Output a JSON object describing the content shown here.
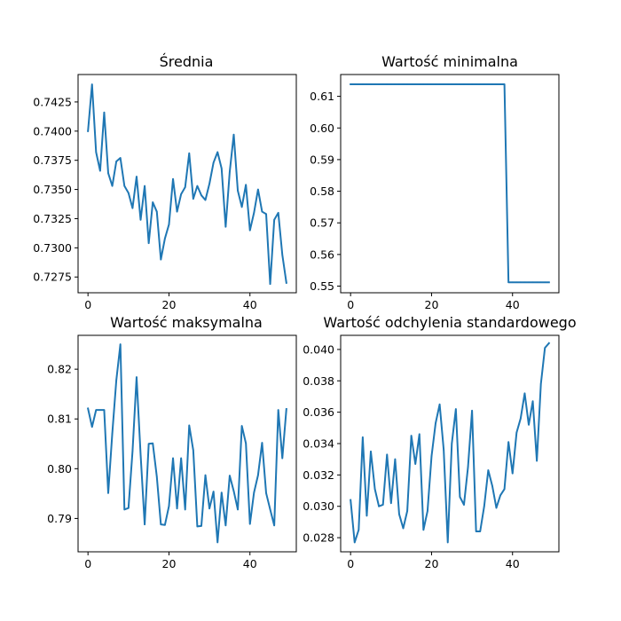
{
  "colors": {
    "series": "#1f77b4",
    "axes": "#000000",
    "background": "#ffffff"
  },
  "chart_data": [
    {
      "type": "line",
      "title": "Średnia",
      "xlabel": "",
      "ylabel": "",
      "xlim": [
        -2.45,
        51.45
      ],
      "ylim": [
        0.72615,
        0.74485
      ],
      "xticks": [
        0,
        20,
        40
      ],
      "xtick_labels": [
        "0",
        "20",
        "40"
      ],
      "yticks": [
        0.7275,
        0.73,
        0.7325,
        0.735,
        0.7375,
        0.74,
        0.7425
      ],
      "ytick_labels": [
        "0.7275",
        "0.7300",
        "0.7325",
        "0.7350",
        "0.7375",
        "0.7400",
        "0.7425"
      ],
      "grid": false,
      "x": [
        0,
        1,
        2,
        3,
        4,
        5,
        6,
        7,
        8,
        9,
        10,
        11,
        12,
        13,
        14,
        15,
        16,
        17,
        18,
        19,
        20,
        21,
        22,
        23,
        24,
        25,
        26,
        27,
        28,
        29,
        30,
        31,
        32,
        33,
        34,
        35,
        36,
        37,
        38,
        39,
        40,
        41,
        42,
        43,
        44,
        45,
        46,
        47,
        48,
        49
      ],
      "values": [
        0.74,
        0.744,
        0.7382,
        0.7366,
        0.7416,
        0.7364,
        0.7353,
        0.7374,
        0.7377,
        0.7353,
        0.7347,
        0.7334,
        0.7361,
        0.7324,
        0.7353,
        0.7304,
        0.7339,
        0.7331,
        0.729,
        0.7308,
        0.732,
        0.7359,
        0.7331,
        0.7346,
        0.7352,
        0.7381,
        0.7342,
        0.7353,
        0.7345,
        0.7341,
        0.7355,
        0.7373,
        0.7382,
        0.7368,
        0.7318,
        0.7365,
        0.7397,
        0.7349,
        0.7335,
        0.7354,
        0.7315,
        0.733,
        0.735,
        0.7331,
        0.7329,
        0.7269,
        0.7324,
        0.733,
        0.7294,
        0.727
      ]
    },
    {
      "type": "line",
      "title": "Wartość minimalna",
      "xlabel": "",
      "ylabel": "",
      "xlim": [
        -2.45,
        51.45
      ],
      "ylim": [
        0.5479,
        0.6169
      ],
      "xticks": [
        0,
        20,
        40
      ],
      "xtick_labels": [
        "0",
        "20",
        "40"
      ],
      "yticks": [
        0.55,
        0.56,
        0.57,
        0.58,
        0.59,
        0.6,
        0.61
      ],
      "ytick_labels": [
        "0.55",
        "0.56",
        "0.57",
        "0.58",
        "0.59",
        "0.60",
        "0.61"
      ],
      "grid": false,
      "x": [
        0,
        1,
        2,
        3,
        4,
        5,
        6,
        7,
        8,
        9,
        10,
        11,
        12,
        13,
        14,
        15,
        16,
        17,
        18,
        19,
        20,
        21,
        22,
        23,
        24,
        25,
        26,
        27,
        28,
        29,
        30,
        31,
        32,
        33,
        34,
        35,
        36,
        37,
        38,
        39,
        40,
        41,
        42,
        43,
        44,
        45,
        46,
        47,
        48,
        49
      ],
      "values": [
        0.6138,
        0.6138,
        0.6138,
        0.6138,
        0.6138,
        0.6138,
        0.6138,
        0.6138,
        0.6138,
        0.6138,
        0.6138,
        0.6138,
        0.6138,
        0.6138,
        0.6138,
        0.6138,
        0.6138,
        0.6138,
        0.6138,
        0.6138,
        0.6138,
        0.6138,
        0.6138,
        0.6138,
        0.6138,
        0.6138,
        0.6138,
        0.6138,
        0.6138,
        0.6138,
        0.6138,
        0.6138,
        0.6138,
        0.6138,
        0.6138,
        0.6138,
        0.6138,
        0.6138,
        0.6138,
        0.5512,
        0.5512,
        0.5512,
        0.5512,
        0.5512,
        0.5512,
        0.5512,
        0.5512,
        0.5512,
        0.5512,
        0.5512
      ]
    },
    {
      "type": "line",
      "title": "Wartość maksymalna",
      "xlabel": "",
      "ylabel": "",
      "xlim": [
        -2.45,
        51.45
      ],
      "ylim": [
        0.7833,
        0.8268
      ],
      "xticks": [
        0,
        20,
        40
      ],
      "xtick_labels": [
        "0",
        "20",
        "40"
      ],
      "yticks": [
        0.79,
        0.8,
        0.81,
        0.82
      ],
      "ytick_labels": [
        "0.79",
        "0.80",
        "0.81",
        "0.82"
      ],
      "grid": false,
      "x": [
        0,
        1,
        2,
        3,
        4,
        5,
        6,
        7,
        8,
        9,
        10,
        11,
        12,
        13,
        14,
        15,
        16,
        17,
        18,
        19,
        20,
        21,
        22,
        23,
        24,
        25,
        26,
        27,
        28,
        29,
        30,
        31,
        32,
        33,
        34,
        35,
        36,
        37,
        38,
        39,
        40,
        41,
        42,
        43,
        44,
        45,
        46,
        47,
        48,
        49
      ],
      "values": [
        0.8121,
        0.8084,
        0.8118,
        0.8118,
        0.8118,
        0.7951,
        0.8071,
        0.8178,
        0.825,
        0.7918,
        0.7921,
        0.8035,
        0.8184,
        0.8028,
        0.7888,
        0.805,
        0.8051,
        0.7984,
        0.7888,
        0.7887,
        0.7925,
        0.8021,
        0.792,
        0.8021,
        0.7918,
        0.8087,
        0.8037,
        0.7884,
        0.7885,
        0.7987,
        0.792,
        0.7954,
        0.7852,
        0.7952,
        0.7886,
        0.7986,
        0.7955,
        0.7918,
        0.8086,
        0.8051,
        0.7889,
        0.7952,
        0.7987,
        0.8052,
        0.7951,
        0.7918,
        0.7886,
        0.8118,
        0.8021,
        0.812
      ]
    },
    {
      "type": "line",
      "title": "Wartość odchylenia standardowego",
      "xlabel": "",
      "ylabel": "",
      "xlim": [
        -2.45,
        51.45
      ],
      "ylim": [
        0.0271,
        0.0409
      ],
      "xticks": [
        0,
        20,
        40
      ],
      "xtick_labels": [
        "0",
        "20",
        "40"
      ],
      "yticks": [
        0.028,
        0.03,
        0.032,
        0.034,
        0.036,
        0.038,
        0.04
      ],
      "ytick_labels": [
        "0.028",
        "0.030",
        "0.032",
        "0.034",
        "0.036",
        "0.038",
        "0.040"
      ],
      "grid": false,
      "x": [
        0,
        1,
        2,
        3,
        4,
        5,
        6,
        7,
        8,
        9,
        10,
        11,
        12,
        13,
        14,
        15,
        16,
        17,
        18,
        19,
        20,
        21,
        22,
        23,
        24,
        25,
        26,
        27,
        28,
        29,
        30,
        31,
        32,
        33,
        34,
        35,
        36,
        37,
        38,
        39,
        40,
        41,
        42,
        43,
        44,
        45,
        46,
        47,
        48,
        49
      ],
      "values": [
        0.0304,
        0.0277,
        0.0285,
        0.0344,
        0.0294,
        0.0335,
        0.0311,
        0.03,
        0.0301,
        0.0333,
        0.0302,
        0.033,
        0.0295,
        0.0286,
        0.0297,
        0.0345,
        0.0327,
        0.0346,
        0.0285,
        0.0297,
        0.0332,
        0.0353,
        0.0365,
        0.0336,
        0.0277,
        0.034,
        0.0362,
        0.0306,
        0.0301,
        0.0325,
        0.0361,
        0.0284,
        0.0284,
        0.03,
        0.0323,
        0.0313,
        0.0299,
        0.0307,
        0.0311,
        0.0341,
        0.0321,
        0.0347,
        0.0356,
        0.0372,
        0.0352,
        0.0367,
        0.0329,
        0.0378,
        0.0401,
        0.0404
      ]
    }
  ]
}
